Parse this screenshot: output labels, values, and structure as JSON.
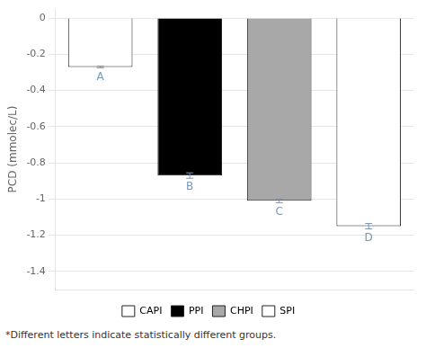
{
  "chart_data": {
    "type": "bar",
    "categories": [
      "CAPI",
      "PPI",
      "CHPI",
      "SPI"
    ],
    "values": [
      -0.27,
      -0.87,
      -1.01,
      -1.15
    ],
    "errors": [
      0.005,
      0.015,
      0.01,
      0.015
    ],
    "colors": [
      "white",
      "black",
      "#a8a8a8",
      "white"
    ],
    "annotations": [
      "A",
      "B",
      "C",
      "D"
    ],
    "footnote": "*Different letters indicate statistically different groups.",
    "y_label": "PCD (mmolec/L)",
    "ylim": [
      -1.5,
      0.05
    ],
    "yticks": [
      0,
      -0.2,
      -0.4,
      -0.6,
      -0.8,
      -1,
      -1.2,
      -1.4
    ],
    "grid": true,
    "legend": "bottom",
    "tick_labels": "y"
  }
}
